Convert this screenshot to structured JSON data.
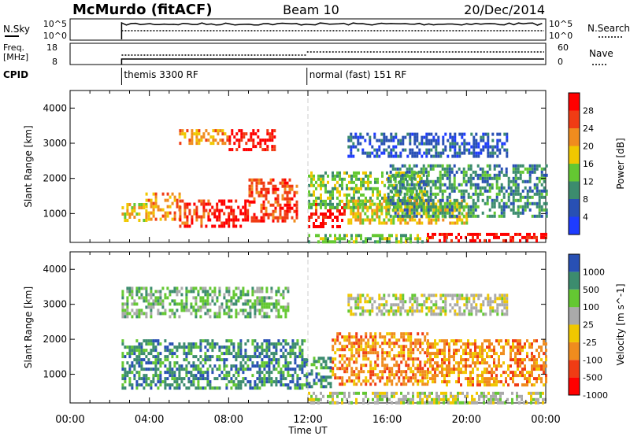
{
  "header": {
    "title": "McMurdo (fitACF)",
    "beam": "Beam 10",
    "date": "20/Dec/2014"
  },
  "summary": {
    "nsky_label": "N.Sky",
    "nsky_ticks": [
      "10^5",
      "10^0"
    ],
    "nsearch_label": "N.Search",
    "nsearch_ticks": [
      "10^5",
      "10^0"
    ],
    "freq_label": [
      "Freq.",
      "[MHz]"
    ],
    "freq_ticks": [
      "18",
      "8"
    ],
    "nave_label": "Nave",
    "nave_ticks": [
      "60",
      "0"
    ],
    "cpid_label": "CPID",
    "cpid_segments": [
      {
        "start_hour": 2.6,
        "label": "themis 3300 RF"
      },
      {
        "start_hour": 11.95,
        "label": "normal (fast) 151 RF"
      }
    ]
  },
  "chart_data": [
    {
      "type": "heatmap",
      "name": "power-panel",
      "ylabel": "Slant Range [km]",
      "yticks": [
        "1000",
        "2000",
        "3000",
        "4000"
      ],
      "ylim": [
        180,
        4500
      ],
      "xlim": [
        0,
        24
      ],
      "colorbar": {
        "label": "Power [dB]",
        "ticks": [
          "4",
          "8",
          "12",
          "16",
          "20",
          "24",
          "28"
        ],
        "colors": [
          "#1e3cff",
          "#2850b4",
          "#3c8c6e",
          "#64c832",
          "#f0c800",
          "#f08c1e",
          "#f03c14",
          "#ff0000"
        ]
      },
      "regions": [
        {
          "t0": 2.6,
          "t1": 3.8,
          "r0": 800,
          "r1": 1300,
          "level": 4
        },
        {
          "t0": 3.8,
          "t1": 5.5,
          "r0": 800,
          "r1": 1600,
          "level": 5
        },
        {
          "t0": 5.5,
          "t1": 7.0,
          "r0": 600,
          "r1": 1400,
          "level": 6
        },
        {
          "t0": 7.0,
          "t1": 9.0,
          "r0": 600,
          "r1": 1400,
          "level": 7
        },
        {
          "t0": 9.0,
          "t1": 11.5,
          "r0": 800,
          "r1": 2000,
          "level": 6
        },
        {
          "t0": 8.0,
          "t1": 10.3,
          "r0": 2800,
          "r1": 3400,
          "level": 7
        },
        {
          "t0": 5.5,
          "t1": 8.0,
          "r0": 3000,
          "r1": 3400,
          "level": 5
        },
        {
          "t0": 12.0,
          "t1": 13.8,
          "r0": 600,
          "r1": 1300,
          "level": 7
        },
        {
          "t0": 12.0,
          "t1": 18.0,
          "r0": 1200,
          "r1": 2200,
          "level": 3
        },
        {
          "t0": 14.0,
          "t1": 20.0,
          "r0": 700,
          "r1": 1400,
          "level": 4
        },
        {
          "t0": 16.0,
          "t1": 24.0,
          "r0": 900,
          "r1": 2400,
          "level": 2
        },
        {
          "t0": 18.0,
          "t1": 24.0,
          "r0": 200,
          "r1": 450,
          "level": 7
        },
        {
          "t0": 12.0,
          "t1": 18.0,
          "r0": 200,
          "r1": 420,
          "level": 3
        },
        {
          "t0": 14.0,
          "t1": 22.0,
          "r0": 2600,
          "r1": 3300,
          "level": 1
        }
      ]
    },
    {
      "type": "heatmap",
      "name": "velocity-panel",
      "ylabel": "Slant Range [km]",
      "xlabel": "Time UT",
      "yticks": [
        "1000",
        "2000",
        "3000",
        "4000"
      ],
      "xticks": [
        "00:00",
        "04:00",
        "08:00",
        "12:00",
        "16:00",
        "20:00",
        "00:00"
      ],
      "ylim": [
        180,
        4500
      ],
      "xlim": [
        0,
        24
      ],
      "colorbar": {
        "label": "Velocity [m s^-1]",
        "ticks": [
          "1000",
          "500",
          "100",
          "25",
          "-25",
          "-100",
          "-500",
          "-1000"
        ],
        "colors": [
          "#2850b4",
          "#3c8c6e",
          "#64c832",
          "#aaaaaa",
          "#f0c800",
          "#f08c1e",
          "#f03c14",
          "#ff0000"
        ]
      },
      "regions": [
        {
          "t0": 2.6,
          "t1": 11.9,
          "r0": 600,
          "r1": 2000,
          "level": 1
        },
        {
          "t0": 2.6,
          "t1": 11.0,
          "r0": 2600,
          "r1": 3500,
          "level": 2
        },
        {
          "t0": 11.9,
          "t1": 13.2,
          "r0": 600,
          "r1": 1500,
          "level": 1
        },
        {
          "t0": 13.2,
          "t1": 18.0,
          "r0": 700,
          "r1": 2200,
          "level": 5
        },
        {
          "t0": 18.0,
          "t1": 24.0,
          "r0": 700,
          "r1": 2000,
          "level": 5
        },
        {
          "t0": 12.0,
          "t1": 24.0,
          "r0": 200,
          "r1": 500,
          "level": 3
        },
        {
          "t0": 14.0,
          "t1": 22.0,
          "r0": 2700,
          "r1": 3300,
          "level": 3
        }
      ]
    }
  ]
}
